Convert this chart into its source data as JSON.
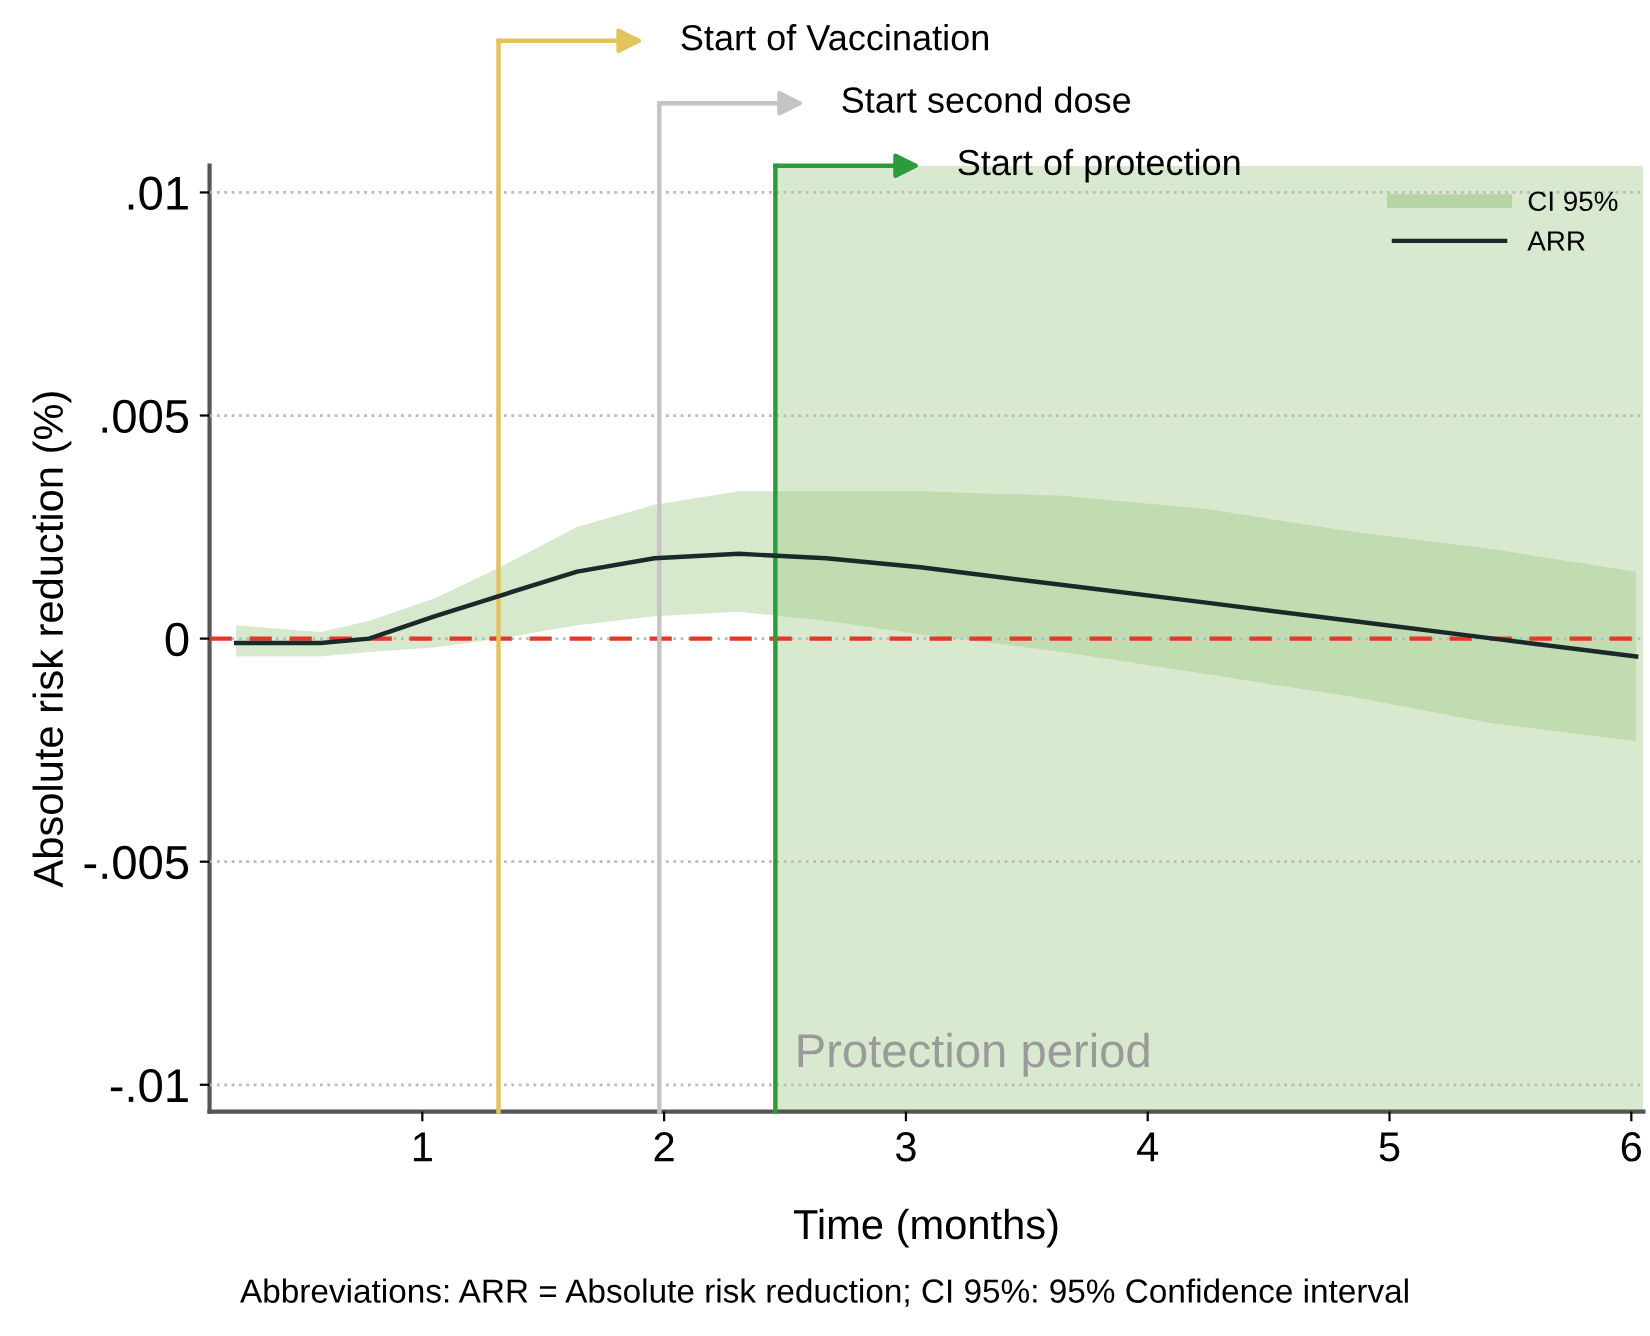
{
  "chart_data": {
    "type": "line",
    "xlabel": "Time (months)",
    "ylabel": "Absolute risk reduction (%)",
    "xlim": [
      0.12,
      6.05
    ],
    "xticks": [
      1,
      2,
      3,
      4,
      5,
      6
    ],
    "ylim": [
      -0.0106,
      0.0106
    ],
    "yticks": [
      {
        "value": 0.01,
        "label": ".01"
      },
      {
        "value": 0.005,
        "label": ".005"
      },
      {
        "value": 0,
        "label": "0"
      },
      {
        "value": -0.005,
        "label": "-.005"
      },
      {
        "value": -0.01,
        "label": "-.01"
      }
    ],
    "grid": "y",
    "legend": "top right",
    "series": [
      {
        "name": "ARR",
        "color": "#1a2a2a",
        "x": [
          0.23,
          0.58,
          0.78,
          1.05,
          1.32,
          1.64,
          1.96,
          2.31,
          2.67,
          3.06,
          3.65,
          4.25,
          4.84,
          5.43,
          6.02
        ],
        "values": [
          -0.0001,
          -0.0001,
          0.0,
          0.0005,
          0.00096,
          0.0015,
          0.0018,
          0.0019,
          0.0018,
          0.0016,
          0.0012,
          0.0008,
          0.0004,
          0.0,
          -0.0004
        ],
        "lower": [
          -0.0004,
          -0.0004,
          -0.0003,
          -0.0002,
          0.0,
          0.0003,
          0.0005,
          0.0006,
          0.0004,
          0.0001,
          -0.0003,
          -0.0008,
          -0.0013,
          -0.0019,
          -0.0023
        ],
        "upper": [
          0.0003,
          0.00015,
          0.0004,
          0.0009,
          0.0016,
          0.0025,
          0.003,
          0.0033,
          0.0033,
          0.0033,
          0.0032,
          0.0029,
          0.0024,
          0.002,
          0.0015
        ]
      }
    ],
    "ref_lines": [
      {
        "axis": "y",
        "value": 0,
        "color": "#e8352a",
        "line_style": "dashed"
      },
      {
        "axis": "x",
        "value": 1.315,
        "label": "Start of Vaccination",
        "color": "#e2c45f"
      },
      {
        "axis": "x",
        "value": 1.98,
        "label": "Start second dose",
        "color": "#c4c4c4"
      },
      {
        "axis": "x",
        "value": 2.46,
        "label": "Start of protection",
        "color": "#2e9a3e"
      }
    ],
    "bands": [
      {
        "axis": "x",
        "from": 2.46,
        "to": 6.05,
        "label": "Protection period",
        "color": "#d9e9cf"
      }
    ],
    "annotations": [
      "CI 95%",
      "Abbreviations: ARR = Absolute risk reduction; CI 95%: 95% Confidence interval"
    ]
  }
}
